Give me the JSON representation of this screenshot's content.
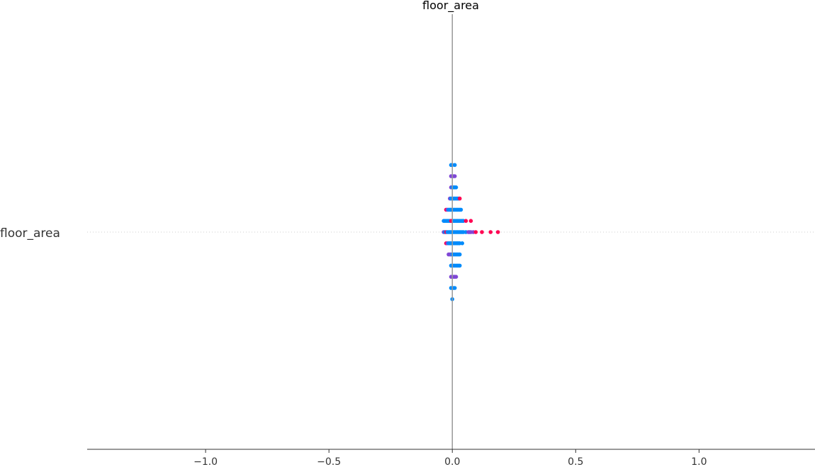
{
  "chart_data": {
    "type": "scatter",
    "title": "floor_area",
    "feature": "floor_area",
    "xlabel": "",
    "ylabel": "",
    "xlim": [
      -1.48,
      1.47
    ],
    "xticks": [
      -1.0,
      -0.5,
      0.0,
      0.5,
      1.0
    ],
    "xtick_labels": [
      "−1.0",
      "−0.5",
      "0.0",
      "0.5",
      "1.0"
    ],
    "grid": false,
    "legend": "none",
    "colors": {
      "low": "#008bfb",
      "mid": "#7f47d6",
      "high": "#ff0052",
      "zero_line": "#999999",
      "axis": "#333333",
      "row_guide": "#cccccc"
    },
    "rows": [
      {
        "level": 6,
        "points": [
          [
            -0.005,
            "low"
          ],
          [
            0.0,
            "low"
          ],
          [
            0.01,
            "low"
          ]
        ]
      },
      {
        "level": 5,
        "points": [
          [
            -0.005,
            "mid"
          ],
          [
            0.0,
            "mid"
          ],
          [
            0.005,
            "mid"
          ],
          [
            0.01,
            "mid"
          ]
        ]
      },
      {
        "level": 4,
        "points": [
          [
            -0.005,
            "mid"
          ],
          [
            0.0,
            "low"
          ],
          [
            0.005,
            "low"
          ],
          [
            0.01,
            "low"
          ],
          [
            0.015,
            "low"
          ]
        ]
      },
      {
        "level": 3,
        "points": [
          [
            -0.01,
            "mid"
          ],
          [
            -0.005,
            "low"
          ],
          [
            0.0,
            "low"
          ],
          [
            0.005,
            "low"
          ],
          [
            0.01,
            "low"
          ],
          [
            0.015,
            "low"
          ],
          [
            0.02,
            "low"
          ],
          [
            0.025,
            "low"
          ],
          [
            0.03,
            "high"
          ]
        ]
      },
      {
        "level": 2,
        "points": [
          [
            -0.025,
            "high"
          ],
          [
            -0.02,
            "mid"
          ],
          [
            -0.015,
            "low"
          ],
          [
            -0.01,
            "low"
          ],
          [
            -0.005,
            "low"
          ],
          [
            0.0,
            "low"
          ],
          [
            0.005,
            "low"
          ],
          [
            0.01,
            "low"
          ],
          [
            0.015,
            "low"
          ],
          [
            0.02,
            "low"
          ],
          [
            0.025,
            "low"
          ],
          [
            0.03,
            "low"
          ],
          [
            0.035,
            "low"
          ]
        ]
      },
      {
        "level": 1,
        "points": [
          [
            -0.035,
            "low"
          ],
          [
            -0.03,
            "low"
          ],
          [
            -0.025,
            "low"
          ],
          [
            -0.02,
            "low"
          ],
          [
            -0.015,
            "low"
          ],
          [
            -0.01,
            "low"
          ],
          [
            -0.005,
            "high"
          ],
          [
            0.0,
            "high"
          ],
          [
            0.005,
            "low"
          ],
          [
            0.01,
            "low"
          ],
          [
            0.015,
            "low"
          ],
          [
            0.02,
            "low"
          ],
          [
            0.025,
            "low"
          ],
          [
            0.03,
            "low"
          ],
          [
            0.035,
            "low"
          ],
          [
            0.04,
            "low"
          ],
          [
            0.045,
            "low"
          ],
          [
            0.055,
            "high"
          ],
          [
            0.075,
            "high"
          ]
        ]
      },
      {
        "level": 0,
        "points": [
          [
            -0.035,
            "mid"
          ],
          [
            -0.03,
            "low"
          ],
          [
            -0.025,
            "high"
          ],
          [
            -0.02,
            "low"
          ],
          [
            -0.015,
            "low"
          ],
          [
            -0.01,
            "low"
          ],
          [
            -0.005,
            "low"
          ],
          [
            0.0,
            "low"
          ],
          [
            0.005,
            "low"
          ],
          [
            0.01,
            "low"
          ],
          [
            0.015,
            "low"
          ],
          [
            0.02,
            "low"
          ],
          [
            0.025,
            "low"
          ],
          [
            0.03,
            "low"
          ],
          [
            0.035,
            "low"
          ],
          [
            0.04,
            "low"
          ],
          [
            0.045,
            "low"
          ],
          [
            0.055,
            "low"
          ],
          [
            0.065,
            "mid"
          ],
          [
            0.07,
            "mid"
          ],
          [
            0.075,
            "mid"
          ],
          [
            0.085,
            "mid"
          ],
          [
            0.095,
            "high"
          ],
          [
            0.12,
            "high"
          ],
          [
            0.155,
            "high"
          ],
          [
            0.185,
            "high"
          ]
        ]
      },
      {
        "level": -1,
        "points": [
          [
            -0.025,
            "high"
          ],
          [
            -0.02,
            "mid"
          ],
          [
            -0.015,
            "low"
          ],
          [
            -0.01,
            "low"
          ],
          [
            -0.005,
            "low"
          ],
          [
            0.0,
            "low"
          ],
          [
            0.005,
            "low"
          ],
          [
            0.01,
            "low"
          ],
          [
            0.015,
            "low"
          ],
          [
            0.02,
            "low"
          ],
          [
            0.025,
            "low"
          ],
          [
            0.03,
            "low"
          ],
          [
            0.04,
            "low"
          ]
        ]
      },
      {
        "level": -2,
        "points": [
          [
            -0.015,
            "mid"
          ],
          [
            -0.01,
            "mid"
          ],
          [
            -0.005,
            "mid"
          ],
          [
            0.0,
            "low"
          ],
          [
            0.005,
            "low"
          ],
          [
            0.01,
            "low"
          ],
          [
            0.015,
            "low"
          ],
          [
            0.02,
            "low"
          ],
          [
            0.025,
            "low"
          ],
          [
            0.03,
            "low"
          ]
        ]
      },
      {
        "level": -3,
        "points": [
          [
            -0.005,
            "low"
          ],
          [
            0.0,
            "low"
          ],
          [
            0.005,
            "low"
          ],
          [
            0.01,
            "low"
          ],
          [
            0.015,
            "low"
          ],
          [
            0.02,
            "low"
          ],
          [
            0.025,
            "low"
          ],
          [
            0.03,
            "low"
          ]
        ]
      },
      {
        "level": -4,
        "points": [
          [
            -0.005,
            "mid"
          ],
          [
            0.0,
            "mid"
          ],
          [
            0.005,
            "mid"
          ],
          [
            0.01,
            "mid"
          ],
          [
            0.015,
            "mid"
          ]
        ]
      },
      {
        "level": -5,
        "points": [
          [
            -0.005,
            "low"
          ],
          [
            0.0,
            "low"
          ],
          [
            0.005,
            "low"
          ],
          [
            0.01,
            "low"
          ]
        ]
      },
      {
        "level": -6,
        "points": [
          [
            0.0,
            "low"
          ]
        ]
      }
    ]
  }
}
